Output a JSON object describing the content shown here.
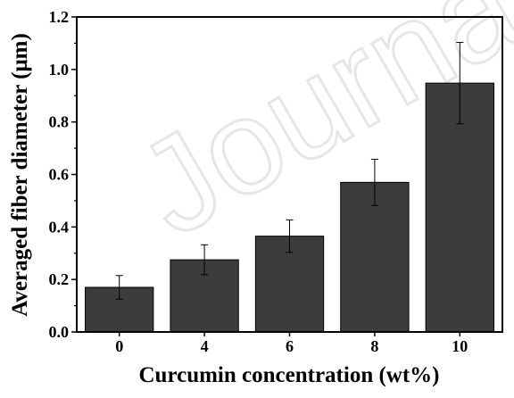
{
  "watermark": "Journal Pre-proof",
  "chart_data": {
    "type": "bar",
    "categories": [
      "0",
      "4",
      "6",
      "8",
      "10"
    ],
    "values": [
      0.17,
      0.275,
      0.365,
      0.57,
      0.948
    ],
    "errors": [
      0.045,
      0.057,
      0.062,
      0.088,
      0.155
    ],
    "xlabel": "Curcumin concentration (wt%)",
    "ylabel": "Averaged fiber diameter (μm)",
    "ylim": [
      0,
      1.2
    ],
    "yticks": [
      "0.0",
      "0.2",
      "0.4",
      "0.6",
      "0.8",
      "1.0",
      "1.2"
    ],
    "grid": false,
    "bar_color": "#3c3c3c"
  }
}
